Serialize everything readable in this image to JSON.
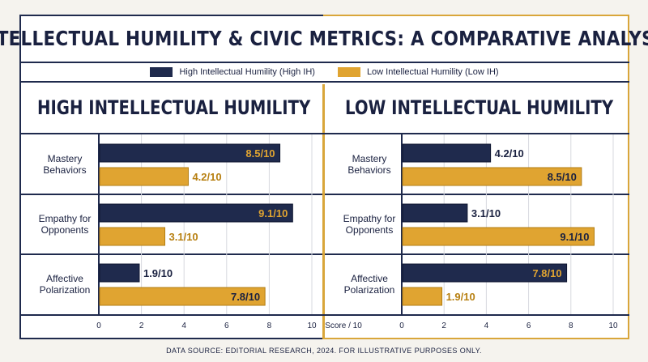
{
  "title": "INTELLECTUAL HUMILITY & CIVIC METRICS: A COMPARATIVE ANALYSIS",
  "legend": [
    {
      "label": "High Intellectual Humility (High IH)",
      "color": "#1f2a4d"
    },
    {
      "label": "Low Intellectual Humility (Low IH)",
      "color": "#e0a431"
    }
  ],
  "panels": [
    {
      "heading": "HIGH INTELLECTUAL HUMILITY",
      "icon": "brain-book-icon"
    },
    {
      "heading": "LOW INTELLECTUAL HUMILITY",
      "icon": "locked-box-icon"
    }
  ],
  "axis_title": "Score / 10",
  "footer": "DATA SOURCE: EDITORIAL RESEARCH, 2024. FOR ILLUSTRATIVE PURPOSES ONLY.",
  "chart_data": [
    {
      "type": "bar",
      "orientation": "horizontal",
      "panel": "HIGH INTELLECTUAL HUMILITY",
      "categories": [
        "Mastery Behaviors",
        "Empathy for Opponents",
        "Affective Polarization"
      ],
      "series": [
        {
          "name": "High Intellectual Humility (High IH)",
          "color": "#1f2a4d",
          "values": [
            8.5,
            9.1,
            1.9
          ],
          "labels": [
            "8.5/10",
            "9.1/10",
            "1.9/10"
          ]
        },
        {
          "name": "Low Intellectual Humility (Low IH)",
          "color": "#e0a431",
          "values": [
            4.2,
            3.1,
            7.8
          ],
          "labels": [
            "4.2/10",
            "3.1/10",
            "7.8/10"
          ]
        }
      ],
      "xlim": [
        0,
        10
      ],
      "xticks": [
        0,
        2,
        4,
        6,
        8,
        10
      ],
      "xlabel": "",
      "grid": true
    },
    {
      "type": "bar",
      "orientation": "horizontal",
      "panel": "LOW INTELLECTUAL HUMILITY",
      "categories": [
        "Mastery Behaviors",
        "Empathy for Opponents",
        "Affective Polarization"
      ],
      "series": [
        {
          "name": "High Intellectual Humility (High IH)",
          "color": "#1f2a4d",
          "values": [
            4.2,
            3.1,
            7.8
          ],
          "labels": [
            "4.2/10",
            "3.1/10",
            "7.8/10"
          ]
        },
        {
          "name": "Low Intellectual Humility (Low IH)",
          "color": "#e0a431",
          "values": [
            8.5,
            9.1,
            1.9
          ],
          "labels": [
            "8.5/10",
            "9.1/10",
            "1.9/10"
          ]
        }
      ],
      "xlim": [
        0,
        10
      ],
      "xticks": [
        0,
        2,
        4,
        6,
        8,
        10
      ],
      "xlabel": "Score / 10",
      "grid": true
    }
  ]
}
